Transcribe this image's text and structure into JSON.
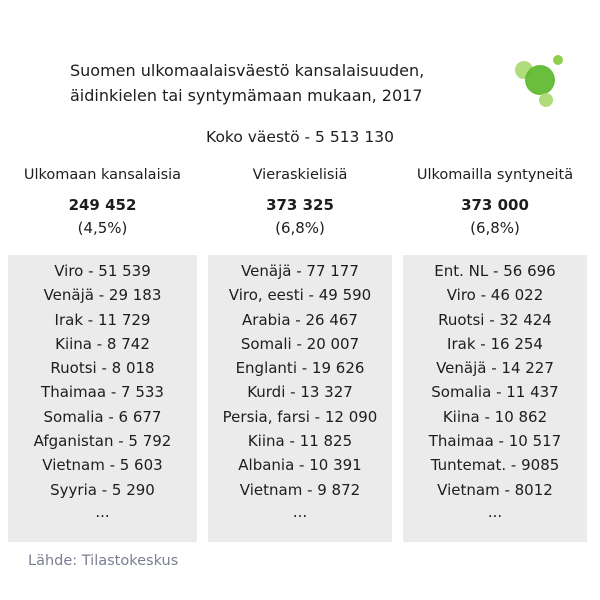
{
  "title": {
    "line1": "Suomen ulkomaalaisväestö kansalaisuuden,",
    "line2": "äidinkielen tai syntymämaan mukaan, 2017"
  },
  "total": "Koko väestö - 5 513 130",
  "columns": [
    {
      "header": "Ulkomaan kansalaisia",
      "count": "249 452",
      "percent": "(4,5%)",
      "items": [
        "Viro - 51 539",
        "Venäjä - 29 183",
        "Irak - 11 729",
        "Kiina - 8 742",
        "Ruotsi - 8 018",
        "Thaimaa - 7 533",
        "Somalia - 6 677",
        "Afganistan - 5 792",
        "Vietnam - 5 603",
        "Syyria - 5 290"
      ],
      "more": "..."
    },
    {
      "header": "Vieraskielisiä",
      "count": "373 325",
      "percent": "(6,8%)",
      "items": [
        "Venäjä - 77 177",
        "Viro, eesti - 49 590",
        "Arabia - 26 467",
        "Somali - 20 007",
        "Englanti - 19 626",
        "Kurdi - 13 327",
        "Persia, farsi - 12 090",
        "Kiina - 11 825",
        "Albania - 10 391",
        "Vietnam - 9 872"
      ],
      "more": "..."
    },
    {
      "header": "Ulkomailla syntyneitä",
      "count": "373 000",
      "percent": "(6,8%)",
      "items": [
        "Ent. NL - 56 696",
        "Viro - 46 022",
        "Ruotsi - 32 424",
        "Irak - 16 254",
        "Venäjä - 14 227",
        "Somalia - 11 437",
        "Kiina - 10 862",
        "Thaimaa - 10 517",
        "Tuntemat. - 9085",
        "Vietnam - 8012"
      ],
      "more": "..."
    }
  ],
  "source": "Lähde: Tilastokeskus",
  "colors": {
    "panel": "#ebebeb",
    "text": "#1d1d1b",
    "source": "#7a7f93",
    "logo_light": "#a8d86e",
    "logo_main": "#5cb82e"
  },
  "logo_icon": "green-circles-logo"
}
